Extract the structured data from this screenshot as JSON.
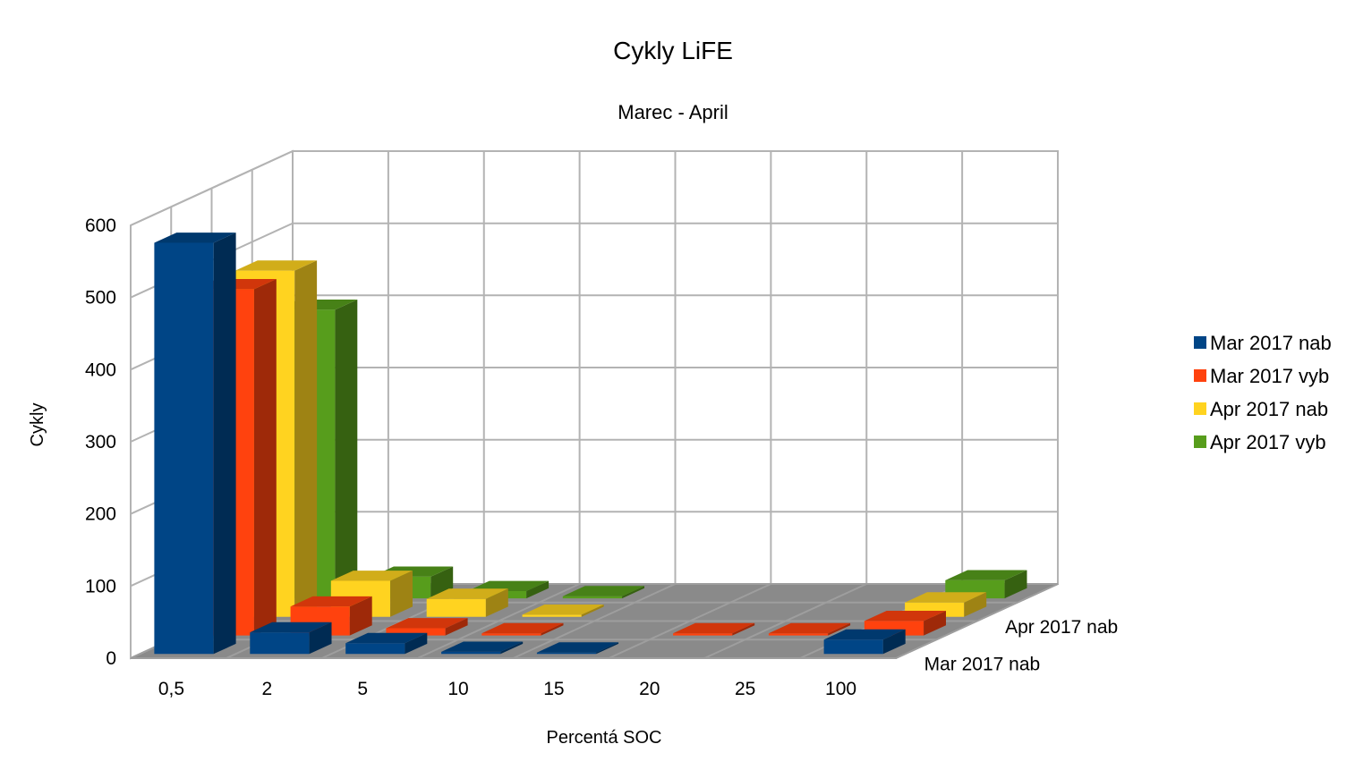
{
  "chart_data": {
    "type": "bar",
    "variant": "3d-deep",
    "title": "Cykly LiFE",
    "subtitle": "Marec - April",
    "xlabel": "Percentá SOC",
    "ylabel": "Cykly",
    "categories": [
      "0,5",
      "2",
      "5",
      "10",
      "15",
      "20",
      "25",
      "100"
    ],
    "ylim": [
      0,
      600
    ],
    "yticks": [
      0,
      100,
      200,
      300,
      400,
      500,
      600
    ],
    "depth_labels": [
      "Mar 2017 nab",
      "Apr 2017 nab"
    ],
    "grid": true,
    "legend": "right",
    "series": [
      {
        "name": "Mar 2017 nab",
        "color": "#004586",
        "values": [
          570,
          30,
          15,
          3,
          2,
          0,
          0,
          20
        ]
      },
      {
        "name": "Mar 2017 vyb",
        "color": "#ff420e",
        "values": [
          480,
          40,
          10,
          3,
          0,
          3,
          3,
          20
        ]
      },
      {
        "name": "Apr 2017 nab",
        "color": "#ffd320",
        "values": [
          480,
          50,
          25,
          3,
          0,
          0,
          0,
          20
        ]
      },
      {
        "name": "Apr 2017 vyb",
        "color": "#579d1c",
        "values": [
          400,
          30,
          10,
          3,
          0,
          0,
          0,
          25
        ]
      }
    ]
  }
}
